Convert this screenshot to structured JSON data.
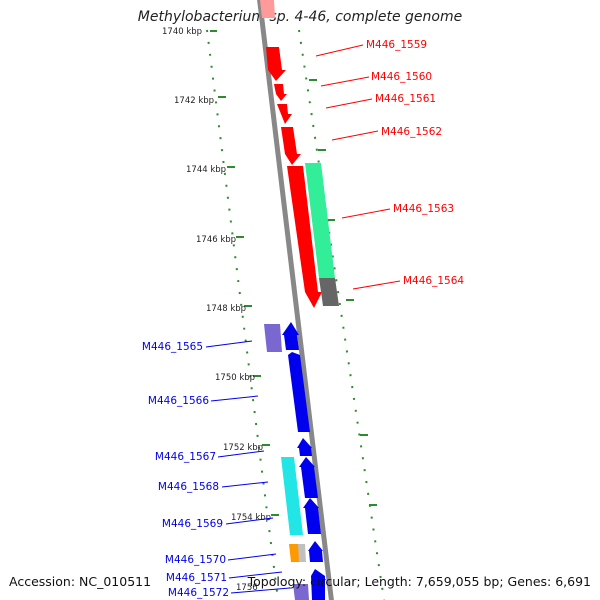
{
  "title": "Methylobacterium sp. 4-46, complete genome",
  "footer": {
    "accession": "Accession: NC_010511",
    "topology": "Topology: circular; Length: 7,659,055 bp; Genes: 6,691"
  },
  "colors": {
    "top_strand_genes": "#ff0000",
    "bottom_strand_genes": "#0000ee",
    "backbone": "#888888",
    "ticks": "#2e8b2e",
    "green_feature": "#33ee99",
    "gray_feature": "#666666",
    "purple_feature": "#7a68d0",
    "cyan_feature": "#22e5e5",
    "orange_feature": "#ff9900"
  },
  "axis_ticks": [
    "1740 kbp",
    "1742 kbp",
    "1744 kbp",
    "1746 kbp",
    "1748 kbp",
    "1750 kbp",
    "1752 kbp",
    "1754 kbp",
    "1756"
  ],
  "genes_top": [
    "M446_1559",
    "M446_1560",
    "M446_1561",
    "M446_1562",
    "M446_1563",
    "M446_1564"
  ],
  "genes_bottom": [
    "M446_1565",
    "M446_1566",
    "M446_1567",
    "M446_1568",
    "M446_1569",
    "M446_1570",
    "M446_1571",
    "M446_1572"
  ]
}
